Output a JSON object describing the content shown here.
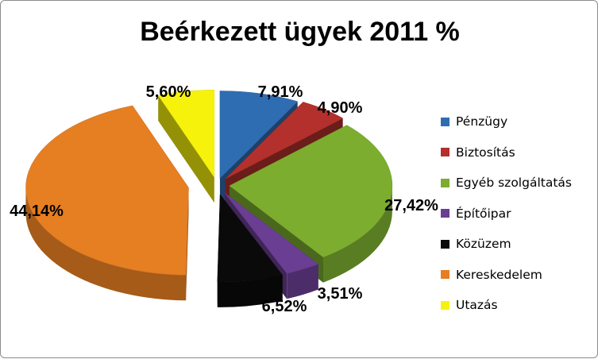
{
  "chart_data": {
    "type": "pie",
    "title": "Beérkezett ügyek 2011 %",
    "legend_position": "right",
    "series": [
      {
        "name": "Pénzügy",
        "value": 7.91,
        "label": "7,91%",
        "color": "#2e6db2"
      },
      {
        "name": "Biztosítás",
        "value": 4.9,
        "label": "4,90%",
        "color": "#b3302c"
      },
      {
        "name": "Egyéb szolgáltatás",
        "value": 27.42,
        "label": "27,42%",
        "color": "#7cad2f"
      },
      {
        "name": "Építőipar",
        "value": 3.51,
        "label": "3,51%",
        "color": "#6a3e93"
      },
      {
        "name": "Közüzem",
        "value": 6.52,
        "label": "6,52%",
        "color": "#0a0a0a"
      },
      {
        "name": "Kereskedelem",
        "value": 44.14,
        "label": "44,14%",
        "color": "#e67e22"
      },
      {
        "name": "Utazás",
        "value": 5.6,
        "label": "5,60%",
        "color": "#f7f20c"
      }
    ]
  }
}
